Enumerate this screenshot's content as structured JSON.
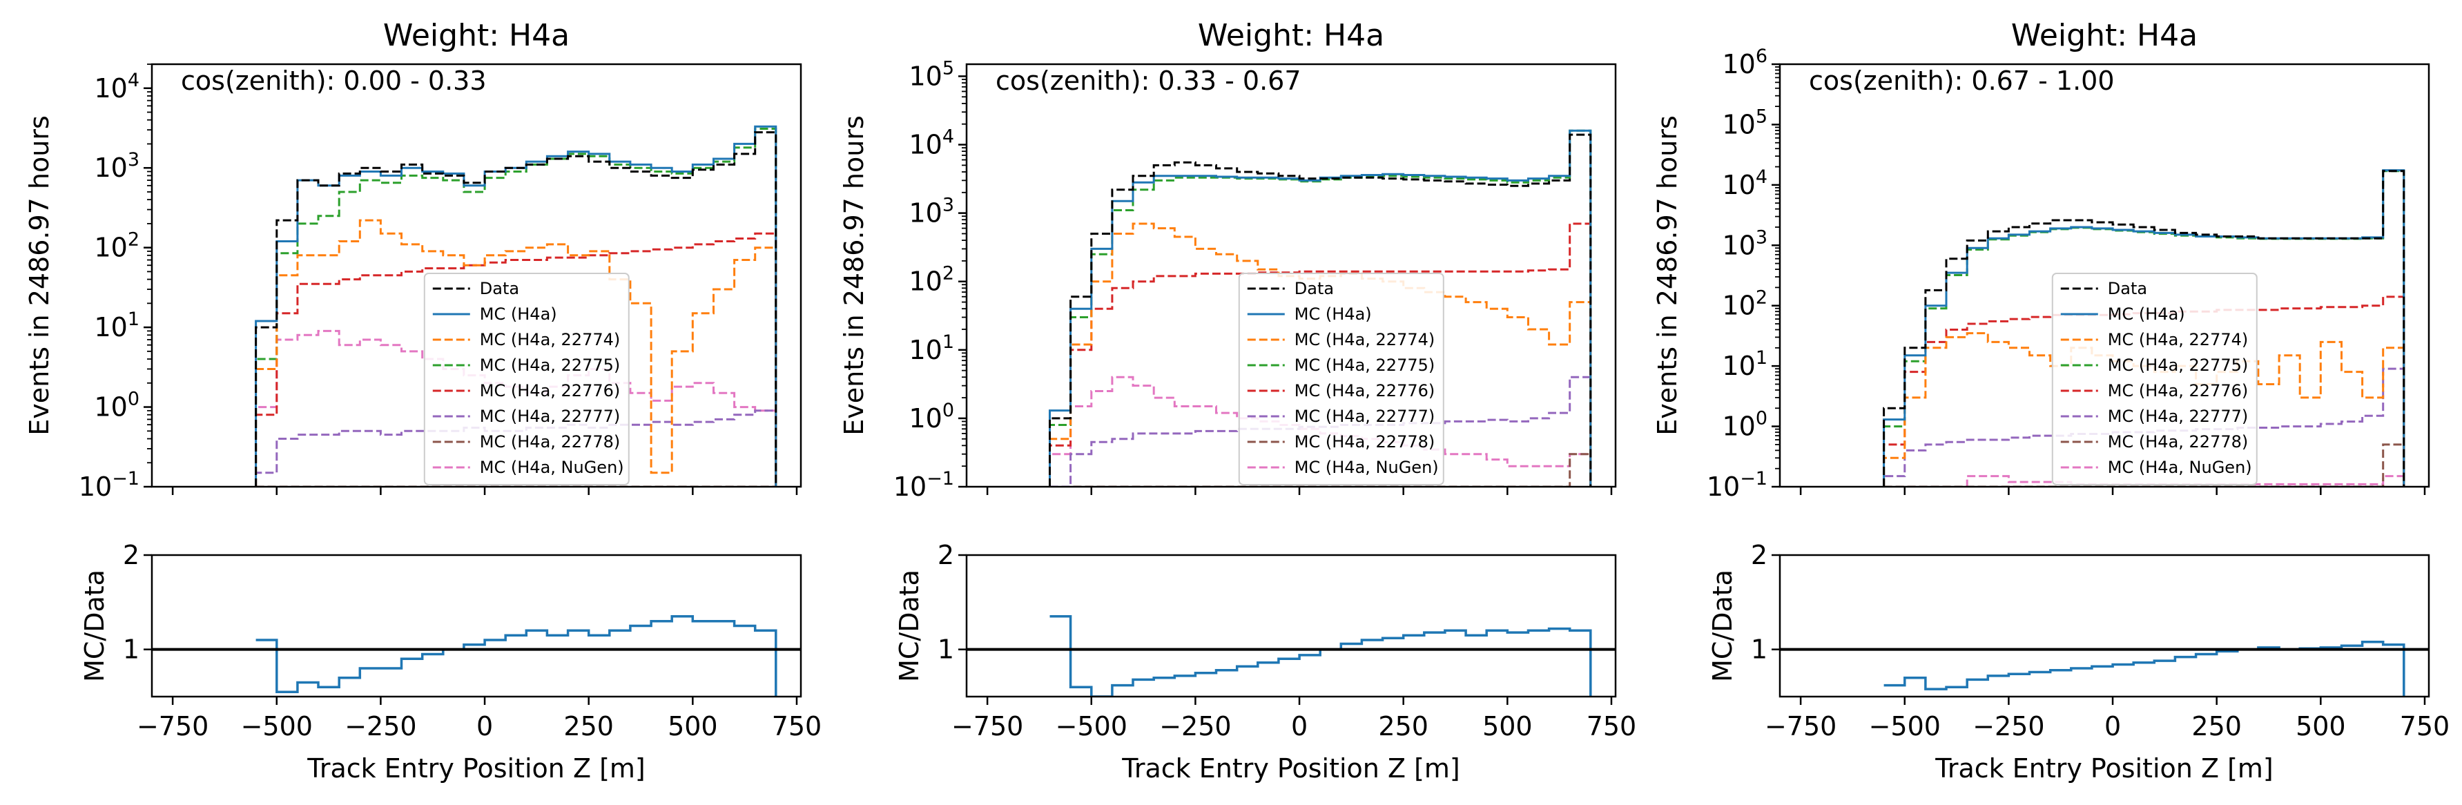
{
  "chart_data": [
    {
      "type": "histogram",
      "title": "Weight: H4a",
      "annotation": "cos(zenith): 0.00 - 0.33",
      "xlabel": "Track Entry Position Z [m]",
      "ylabel": "Events in 2486.97 hours",
      "ratio_ylabel": "MC/Data",
      "xlim": [
        -800,
        760
      ],
      "ylim": [
        0.1,
        20000
      ],
      "yscale": "log",
      "xticks": [
        "−750",
        "−500",
        "−250",
        "0",
        "250",
        "500",
        "750"
      ],
      "yticks": [
        "10",
        "10",
        "10",
        "10",
        "10",
        "10"
      ],
      "ytick_exponents": [
        "−1",
        "0",
        "1",
        "2",
        "3",
        "4"
      ],
      "ratio_ylim": [
        0.5,
        2
      ],
      "ratio_yticks": [
        "1",
        "2"
      ],
      "legend_position": "center",
      "bin_edges": [
        -550,
        -500,
        -450,
        -400,
        -350,
        -300,
        -250,
        -200,
        -150,
        -100,
        -50,
        0,
        50,
        100,
        150,
        200,
        250,
        300,
        350,
        400,
        450,
        500,
        550,
        600,
        650,
        700
      ],
      "series": [
        {
          "name": "Data",
          "color": "#000000",
          "dash": "12,5",
          "values": [
            10,
            220,
            700,
            600,
            850,
            1000,
            900,
            1100,
            850,
            800,
            650,
            900,
            1000,
            1100,
            1300,
            1400,
            1200,
            1000,
            900,
            800,
            750,
            950,
            1100,
            1500,
            2800
          ]
        },
        {
          "name": "MC (H4a)",
          "color": "#1f77b4",
          "dash": "",
          "values": [
            12,
            120,
            700,
            600,
            800,
            900,
            800,
            1000,
            900,
            850,
            600,
            900,
            1000,
            1200,
            1400,
            1600,
            1500,
            1200,
            1100,
            1000,
            900,
            1100,
            1300,
            2000,
            3300
          ]
        },
        {
          "name": "MC (H4a, 22774)",
          "color": "#ff7f0e",
          "dash": "12,5",
          "values": [
            3,
            45,
            80,
            80,
            120,
            220,
            150,
            110,
            90,
            80,
            60,
            80,
            90,
            100,
            110,
            80,
            90,
            40,
            20,
            0.15,
            5,
            15,
            30,
            70,
            100
          ]
        },
        {
          "name": "MC (H4a, 22775)",
          "color": "#2ca02c",
          "dash": "12,5",
          "values": [
            4,
            85,
            200,
            250,
            500,
            700,
            650,
            800,
            750,
            700,
            500,
            750,
            900,
            1100,
            1300,
            1500,
            1400,
            1100,
            1000,
            900,
            850,
            1000,
            1200,
            1800,
            3100
          ]
        },
        {
          "name": "MC (H4a, 22776)",
          "color": "#d62728",
          "dash": "12,5",
          "values": [
            0.8,
            15,
            35,
            35,
            40,
            45,
            45,
            50,
            55,
            55,
            60,
            65,
            70,
            70,
            75,
            75,
            80,
            85,
            90,
            95,
            100,
            110,
            120,
            130,
            150
          ]
        },
        {
          "name": "MC (H4a, 22777)",
          "color": "#9467bd",
          "dash": "12,5",
          "values": [
            0.15,
            0.4,
            0.45,
            0.45,
            0.5,
            0.5,
            0.45,
            0.5,
            0.5,
            0.5,
            0.55,
            0.5,
            0.5,
            0.55,
            0.55,
            0.6,
            0.55,
            0.6,
            0.6,
            0.65,
            0.6,
            0.65,
            0.7,
            0.8,
            0.9
          ]
        },
        {
          "name": "MC (H4a, 22778)",
          "color": "#8c564b",
          "dash": "12,5",
          "values": [
            0.1,
            0.1,
            0.1,
            0.1,
            0.1,
            0.1,
            0.1,
            0.1,
            0.1,
            0.1,
            0.1,
            0.1,
            0.1,
            0.1,
            0.1,
            0.1,
            0.1,
            0.1,
            0.1,
            0.1,
            0.1,
            0.1,
            0.1,
            0.1,
            0.1
          ]
        },
        {
          "name": "MC (H4a, NuGen)",
          "color": "#e377c2",
          "dash": "12,5",
          "values": [
            1,
            7,
            8,
            9,
            6,
            7,
            6,
            5,
            4,
            3,
            2.5,
            2,
            1.8,
            1.5,
            1.8,
            2.5,
            3,
            2,
            1.5,
            1.2,
            1.8,
            2,
            1.5,
            1,
            0.9
          ]
        }
      ],
      "ratio": [
        1.1,
        0.55,
        0.65,
        0.6,
        0.7,
        0.8,
        0.8,
        0.9,
        0.95,
        1.0,
        1.05,
        1.1,
        1.15,
        1.2,
        1.15,
        1.2,
        1.15,
        1.2,
        1.25,
        1.3,
        1.35,
        1.3,
        1.3,
        1.25,
        1.2
      ]
    },
    {
      "type": "histogram",
      "title": "Weight: H4a",
      "annotation": "cos(zenith): 0.33 - 0.67",
      "xlabel": "Track Entry Position Z [m]",
      "ylabel": "Events in 2486.97 hours",
      "ratio_ylabel": "MC/Data",
      "xlim": [
        -800,
        760
      ],
      "ylim": [
        0.1,
        150000
      ],
      "yscale": "log",
      "xticks": [
        "−750",
        "−500",
        "−250",
        "0",
        "250",
        "500",
        "750"
      ],
      "yticks": [
        "10",
        "10",
        "10",
        "10",
        "10",
        "10",
        "10"
      ],
      "ytick_exponents": [
        "−1",
        "0",
        "1",
        "2",
        "3",
        "4",
        "5"
      ],
      "ratio_ylim": [
        0.5,
        2
      ],
      "ratio_yticks": [
        "1",
        "2"
      ],
      "legend_position": "center",
      "bin_edges": [
        -600,
        -550,
        -500,
        -450,
        -400,
        -350,
        -300,
        -250,
        -200,
        -150,
        -100,
        -50,
        0,
        50,
        100,
        150,
        200,
        250,
        300,
        350,
        400,
        450,
        500,
        550,
        600,
        650,
        700
      ],
      "series": [
        {
          "name": "Data",
          "color": "#000000",
          "dash": "12,5",
          "values": [
            1,
            60,
            500,
            2200,
            3500,
            5000,
            5500,
            5000,
            4500,
            4000,
            3800,
            3500,
            3200,
            3200,
            3300,
            3300,
            3200,
            3100,
            3000,
            2900,
            2700,
            2600,
            2500,
            2700,
            3000,
            14000
          ]
        },
        {
          "name": "MC (H4a)",
          "color": "#1f77b4",
          "dash": "",
          "values": [
            1.3,
            40,
            300,
            1500,
            2800,
            3500,
            3500,
            3500,
            3400,
            3300,
            3300,
            3200,
            3000,
            3300,
            3500,
            3600,
            3700,
            3600,
            3500,
            3400,
            3300,
            3200,
            3000,
            3200,
            3500,
            16000
          ]
        },
        {
          "name": "MC (H4a, 22774)",
          "color": "#ff7f0e",
          "dash": "12,5",
          "values": [
            0.5,
            12,
            100,
            500,
            700,
            600,
            450,
            300,
            250,
            200,
            150,
            120,
            110,
            120,
            130,
            110,
            100,
            80,
            70,
            60,
            50,
            40,
            30,
            20,
            12,
            50
          ]
        },
        {
          "name": "MC (H4a, 22775)",
          "color": "#2ca02c",
          "dash": "12,5",
          "values": [
            0.8,
            30,
            250,
            1100,
            2200,
            3000,
            3300,
            3300,
            3300,
            3200,
            3200,
            3100,
            2900,
            3100,
            3300,
            3400,
            3500,
            3400,
            3300,
            3200,
            3100,
            3000,
            2800,
            3000,
            3300,
            16000
          ]
        },
        {
          "name": "MC (H4a, 22776)",
          "color": "#d62728",
          "dash": "12,5",
          "values": [
            0.4,
            10,
            40,
            80,
            100,
            120,
            120,
            130,
            130,
            130,
            135,
            135,
            140,
            140,
            140,
            140,
            140,
            140,
            140,
            140,
            140,
            140,
            140,
            145,
            150,
            700
          ]
        },
        {
          "name": "MC (H4a, 22777)",
          "color": "#9467bd",
          "dash": "12,5",
          "values": [
            0.1,
            0.3,
            0.45,
            0.5,
            0.6,
            0.6,
            0.6,
            0.65,
            0.65,
            0.7,
            0.7,
            0.7,
            0.75,
            0.75,
            0.8,
            0.8,
            0.8,
            0.85,
            0.85,
            0.9,
            0.9,
            0.95,
            0.9,
            1,
            1.2,
            4
          ]
        },
        {
          "name": "MC (H4a, 22778)",
          "color": "#8c564b",
          "dash": "12,5",
          "values": [
            0.1,
            0.1,
            0.1,
            0.1,
            0.1,
            0.1,
            0.1,
            0.1,
            0.1,
            0.1,
            0.1,
            0.1,
            0.1,
            0.1,
            0.1,
            0.1,
            0.1,
            0.1,
            0.1,
            0.1,
            0.1,
            0.1,
            0.1,
            0.1,
            0.1,
            0.3
          ]
        },
        {
          "name": "MC (H4a, NuGen)",
          "color": "#e377c2",
          "dash": "12,5",
          "values": [
            0.3,
            1.5,
            2.5,
            4,
            3,
            2,
            1.5,
            1.5,
            1.2,
            1,
            0.9,
            0.8,
            0.7,
            0.6,
            0.55,
            0.5,
            0.45,
            0.4,
            0.35,
            0.3,
            0.3,
            0.25,
            0.2,
            0.2,
            0.2,
            0.3
          ]
        }
      ],
      "ratio": [
        1.35,
        0.6,
        0.5,
        0.62,
        0.68,
        0.7,
        0.72,
        0.75,
        0.78,
        0.82,
        0.86,
        0.9,
        0.94,
        1.0,
        1.06,
        1.1,
        1.12,
        1.15,
        1.18,
        1.2,
        1.15,
        1.2,
        1.18,
        1.2,
        1.22,
        1.2
      ]
    },
    {
      "type": "histogram",
      "title": "Weight: H4a",
      "annotation": "cos(zenith): 0.67 - 1.00",
      "xlabel": "Track Entry Position Z [m]",
      "ylabel": "Events in 2486.97 hours",
      "ratio_ylabel": "MC/Data",
      "xlim": [
        -800,
        760
      ],
      "ylim": [
        0.1,
        1000000
      ],
      "yscale": "log",
      "xticks": [
        "−750",
        "−500",
        "−250",
        "0",
        "250",
        "500",
        "750"
      ],
      "yticks": [
        "10",
        "10",
        "10",
        "10",
        "10",
        "10",
        "10",
        "10"
      ],
      "ytick_exponents": [
        "−1",
        "0",
        "1",
        "2",
        "3",
        "4",
        "5",
        "6"
      ],
      "ratio_ylim": [
        0.5,
        2
      ],
      "ratio_yticks": [
        "1",
        "2"
      ],
      "legend_position": "center",
      "bin_edges": [
        -550,
        -500,
        -450,
        -400,
        -350,
        -300,
        -250,
        -200,
        -150,
        -100,
        -50,
        0,
        50,
        100,
        150,
        200,
        250,
        300,
        350,
        400,
        450,
        500,
        550,
        600,
        650,
        700
      ],
      "series": [
        {
          "name": "Data",
          "color": "#000000",
          "dash": "12,5",
          "values": [
            2,
            20,
            180,
            600,
            1200,
            1700,
            2000,
            2300,
            2600,
            2600,
            2400,
            2200,
            2000,
            1800,
            1600,
            1500,
            1400,
            1400,
            1300,
            1300,
            1300,
            1300,
            1300,
            1300,
            17000
          ]
        },
        {
          "name": "MC (H4a)",
          "color": "#1f77b4",
          "dash": "",
          "values": [
            1.3,
            15,
            100,
            350,
            900,
            1300,
            1500,
            1700,
            1900,
            2000,
            1900,
            1800,
            1700,
            1600,
            1500,
            1400,
            1400,
            1350,
            1300,
            1300,
            1300,
            1300,
            1300,
            1350,
            17500
          ]
        },
        {
          "name": "MC (H4a, 22774)",
          "color": "#ff7f0e",
          "dash": "12,5",
          "values": [
            0.3,
            3,
            20,
            30,
            35,
            25,
            20,
            15,
            10,
            20,
            15,
            12,
            10,
            8,
            10,
            5,
            8,
            12,
            5,
            15,
            3,
            25,
            8,
            3,
            20
          ]
        },
        {
          "name": "MC (H4a, 22775)",
          "color": "#2ca02c",
          "dash": "12,5",
          "values": [
            1,
            12,
            90,
            320,
            850,
            1250,
            1450,
            1650,
            1850,
            1950,
            1850,
            1750,
            1650,
            1550,
            1450,
            1400,
            1350,
            1300,
            1280,
            1280,
            1280,
            1280,
            1280,
            1300,
            17000
          ]
        },
        {
          "name": "MC (H4a, 22776)",
          "color": "#d62728",
          "dash": "12,5",
          "values": [
            0.5,
            8,
            25,
            40,
            50,
            55,
            60,
            65,
            70,
            70,
            70,
            72,
            75,
            75,
            80,
            80,
            85,
            85,
            85,
            90,
            90,
            95,
            95,
            100,
            140
          ]
        },
        {
          "name": "MC (H4a, 22777)",
          "color": "#9467bd",
          "dash": "12,5",
          "values": [
            0.15,
            0.4,
            0.5,
            0.55,
            0.6,
            0.6,
            0.65,
            0.7,
            0.7,
            0.75,
            0.75,
            0.8,
            0.8,
            0.85,
            0.85,
            0.9,
            0.9,
            0.95,
            0.95,
            1,
            1,
            1.1,
            1.2,
            1.5,
            9
          ]
        },
        {
          "name": "MC (H4a, 22778)",
          "color": "#8c564b",
          "dash": "12,5",
          "values": [
            0.1,
            0.1,
            0.1,
            0.1,
            0.1,
            0.1,
            0.1,
            0.1,
            0.1,
            0.1,
            0.1,
            0.1,
            0.1,
            0.1,
            0.1,
            0.1,
            0.1,
            0.1,
            0.1,
            0.1,
            0.1,
            0.1,
            0.1,
            0.1,
            0.5
          ]
        },
        {
          "name": "MC (H4a, NuGen)",
          "color": "#e377c2",
          "dash": "12,5",
          "values": [
            0.1,
            0.1,
            0.1,
            0.1,
            0.15,
            0.15,
            0.12,
            0.12,
            0.12,
            0.11,
            0.11,
            0.11,
            0.11,
            0.11,
            0.11,
            0.11,
            0.11,
            0.11,
            0.11,
            0.11,
            0.11,
            0.11,
            0.11,
            0.11,
            0.15
          ]
        }
      ],
      "ratio": [
        0.62,
        0.7,
        0.58,
        0.6,
        0.68,
        0.72,
        0.74,
        0.76,
        0.78,
        0.8,
        0.82,
        0.84,
        0.86,
        0.88,
        0.92,
        0.95,
        0.98,
        1.0,
        1.02,
        1.0,
        1.01,
        1.02,
        1.04,
        1.08,
        1.05
      ]
    }
  ]
}
